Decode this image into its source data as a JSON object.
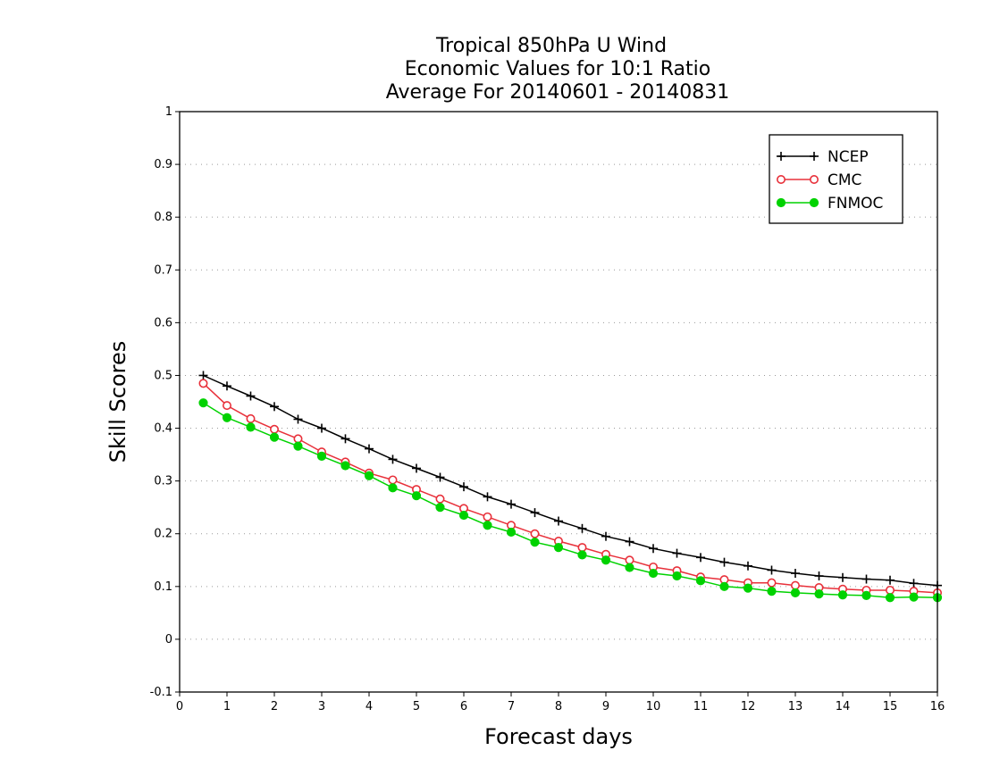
{
  "chart_data": {
    "type": "line",
    "title": [
      "Tropical 850hPa U Wind",
      "Economic Values for 10:1 Ratio",
      "Average For 20140601 - 20140831"
    ],
    "xlabel": "Forecast days",
    "ylabel": "Skill Scores",
    "xlim": [
      0,
      16
    ],
    "ylim": [
      -0.1,
      1
    ],
    "x_ticks": [
      0,
      1,
      2,
      3,
      4,
      5,
      6,
      7,
      8,
      9,
      10,
      11,
      12,
      13,
      14,
      15,
      16
    ],
    "x_tick_labels": [
      "0",
      "1",
      "2",
      "3",
      "4",
      "5",
      "6",
      "7",
      "8",
      "9",
      "10",
      "11",
      "12",
      "13",
      "14",
      "15",
      "16"
    ],
    "y_ticks": [
      -0.1,
      0,
      0.1,
      0.2,
      0.3,
      0.4,
      0.5,
      0.6,
      0.7,
      0.8,
      0.9,
      1
    ],
    "y_tick_labels": [
      "-0.1",
      "0",
      "0.1",
      "0.2",
      "0.3",
      "0.4",
      "0.5",
      "0.6",
      "0.7",
      "0.8",
      "0.9",
      "1"
    ],
    "grid": "horizontal dotted",
    "legend_position": "top-right",
    "x": [
      0.5,
      1,
      1.5,
      2,
      2.5,
      3,
      3.5,
      4,
      4.5,
      5,
      5.5,
      6,
      6.5,
      7,
      7.5,
      8,
      8.5,
      9,
      9.5,
      10,
      10.5,
      11,
      11.5,
      12,
      12.5,
      13,
      13.5,
      14,
      14.5,
      15,
      15.5,
      16
    ],
    "series": [
      {
        "name": "NCEP",
        "color": "#000000",
        "marker": "plus",
        "values": [
          0.5,
          0.48,
          0.461,
          0.441,
          0.417,
          0.4,
          0.38,
          0.361,
          0.341,
          0.324,
          0.307,
          0.289,
          0.27,
          0.256,
          0.24,
          0.224,
          0.21,
          0.195,
          0.185,
          0.172,
          0.163,
          0.155,
          0.146,
          0.139,
          0.131,
          0.125,
          0.12,
          0.117,
          0.114,
          0.112,
          0.106,
          0.102
        ]
      },
      {
        "name": "CMC",
        "color": "#e8303a",
        "marker": "open-circle",
        "values": [
          0.485,
          0.443,
          0.418,
          0.398,
          0.38,
          0.355,
          0.336,
          0.315,
          0.302,
          0.284,
          0.266,
          0.248,
          0.232,
          0.216,
          0.2,
          0.186,
          0.174,
          0.161,
          0.15,
          0.137,
          0.13,
          0.118,
          0.113,
          0.107,
          0.107,
          0.102,
          0.098,
          0.095,
          0.093,
          0.093,
          0.091,
          0.088
        ]
      },
      {
        "name": "FNMOC",
        "color": "#00d200",
        "marker": "filled-circle",
        "values": [
          0.448,
          0.42,
          0.402,
          0.383,
          0.366,
          0.347,
          0.329,
          0.31,
          0.287,
          0.272,
          0.25,
          0.235,
          0.216,
          0.203,
          0.184,
          0.174,
          0.16,
          0.15,
          0.136,
          0.125,
          0.12,
          0.111,
          0.1,
          0.097,
          0.091,
          0.088,
          0.086,
          0.084,
          0.083,
          0.079,
          0.08,
          0.079
        ]
      }
    ]
  }
}
